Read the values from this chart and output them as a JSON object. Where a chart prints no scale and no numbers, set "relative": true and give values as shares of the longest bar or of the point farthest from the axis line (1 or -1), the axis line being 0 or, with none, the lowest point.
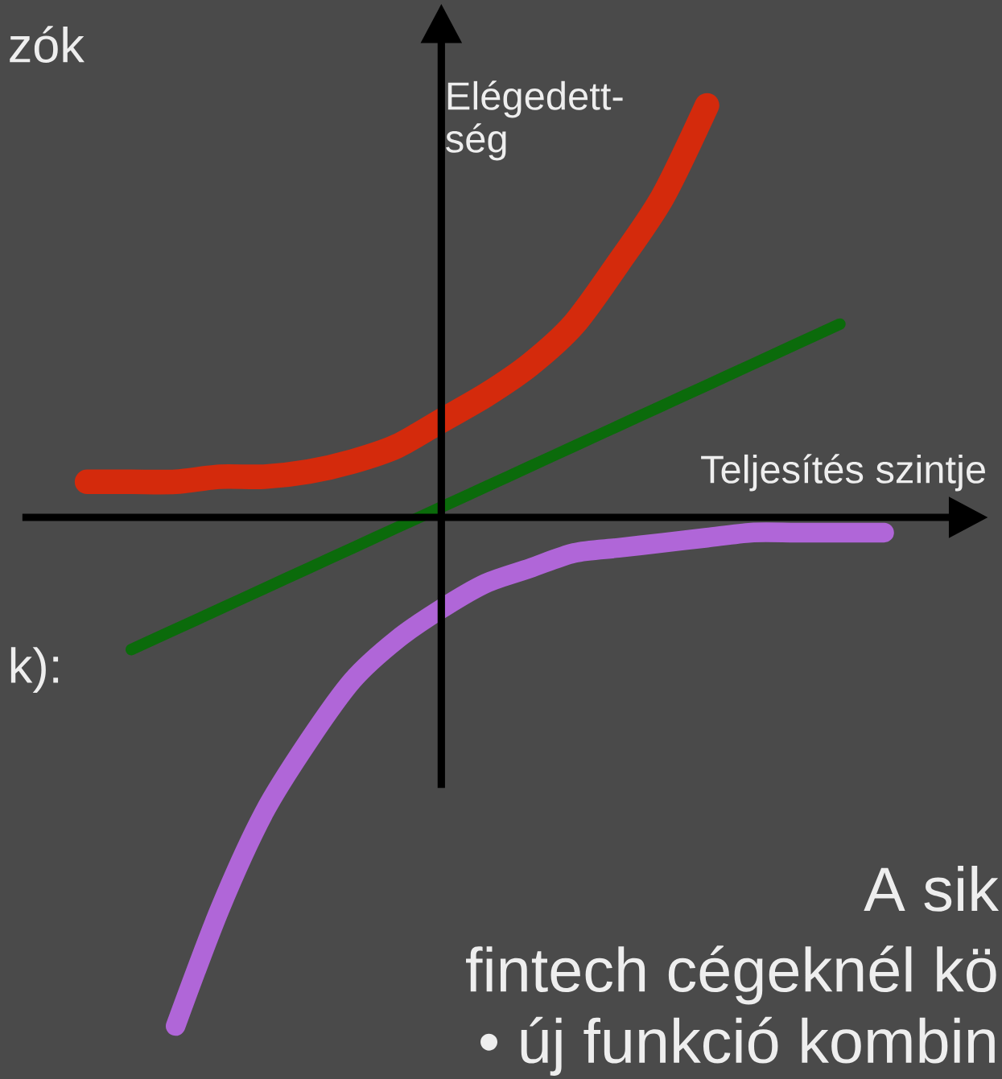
{
  "chart_data": {
    "type": "line",
    "relative": true,
    "xlabel": "Teljesítés szintje",
    "ylabel": "Elégedett-ség",
    "categories": [
      null,
      null,
      null,
      null,
      null,
      null,
      null,
      null,
      null,
      null,
      null,
      null,
      null,
      null,
      null,
      null,
      null,
      null,
      null
    ],
    "series": [
      {
        "color": "#d42a0c",
        "values": [
          0.07,
          0.07,
          0.07,
          0.08,
          0.08,
          0.09,
          0.11,
          0.14,
          0.19,
          0.24,
          0.3,
          0.38,
          0.5,
          0.63,
          0.81,
          null,
          null,
          null,
          null
        ]
      },
      {
        "color": "#0b6b0b",
        "values": [
          null,
          -0.26,
          -0.22,
          -0.18,
          -0.14,
          -0.1,
          -0.06,
          -0.02,
          0.02,
          0.06,
          0.1,
          0.14,
          0.18,
          0.22,
          0.26,
          0.3,
          0.34,
          0.38,
          null
        ]
      },
      {
        "color": "#b066d8",
        "values": [
          null,
          null,
          -1,
          -0.77,
          -0.58,
          -0.44,
          -0.32,
          -0.24,
          -0.18,
          -0.13,
          -0.1,
          -0.07,
          -0.06,
          -0.05,
          -0.04,
          -0.03,
          -0.03,
          -0.03,
          -0.03
        ]
      }
    ],
    "annotations": [
      "zók",
      "k):",
      "A sik",
      "fintech cégeknél kö",
      "• új funkció kombin"
    ]
  }
}
